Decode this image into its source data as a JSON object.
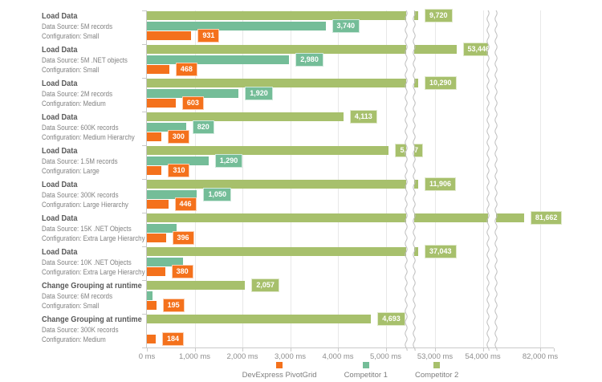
{
  "chart_data": {
    "type": "bar",
    "orientation": "horizontal",
    "title": "",
    "unit": "ms",
    "grid": true,
    "legend_position": "bottom-center",
    "series": [
      {
        "name": "DevExpress PivotGrid",
        "color": "#F4711C"
      },
      {
        "name": "Competitor 1",
        "color": "#74BD98"
      },
      {
        "name": "Competitor 2",
        "color": "#A7C06C"
      }
    ],
    "groups": [
      {
        "title": "Load Data",
        "data_source": "Data Source: 5M records",
        "configuration": "Configuration: Small",
        "bars": [
          {
            "series": "DevExpress PivotGrid",
            "value": 931,
            "label": "931"
          },
          {
            "series": "Competitor 1",
            "value": 3740,
            "label": "3,740"
          },
          {
            "series": "Competitor 2",
            "value": 9720,
            "label": "9,720"
          }
        ]
      },
      {
        "title": "Load Data",
        "data_source": "Data Source: 5M .NET objects",
        "configuration": "Configuration: Small",
        "bars": [
          {
            "series": "DevExpress PivotGrid",
            "value": 468,
            "label": "468"
          },
          {
            "series": "Competitor 1",
            "value": 2980,
            "label": "2,980"
          },
          {
            "series": "Competitor 2",
            "value": 53446,
            "label": "53,446"
          }
        ]
      },
      {
        "title": "Load Data",
        "data_source": "Data Source: 2M records",
        "configuration": "Configuration: Medium",
        "bars": [
          {
            "series": "DevExpress PivotGrid",
            "value": 603,
            "label": "603"
          },
          {
            "series": "Competitor 1",
            "value": 1920,
            "label": "1,920"
          },
          {
            "series": "Competitor 2",
            "value": 10290,
            "label": "10,290"
          }
        ]
      },
      {
        "title": "Load Data",
        "data_source": "Data Source: 600K records",
        "configuration": "Configuration: Medium Hierarchy",
        "bars": [
          {
            "series": "DevExpress PivotGrid",
            "value": 300,
            "label": "300"
          },
          {
            "series": "Competitor 1",
            "value": 820,
            "label": "820"
          },
          {
            "series": "Competitor 2",
            "value": 4113,
            "label": "4,113"
          }
        ]
      },
      {
        "title": "Load Data",
        "data_source": "Data Source: 1.5M records",
        "configuration": "Configuration: Large",
        "bars": [
          {
            "series": "DevExpress PivotGrid",
            "value": 310,
            "label": "310"
          },
          {
            "series": "Competitor 1",
            "value": 1290,
            "label": "1,290"
          },
          {
            "series": "Competitor 2",
            "value": 5067,
            "label": "5,067"
          }
        ]
      },
      {
        "title": "Load Data",
        "data_source": "Data Source: 300K records",
        "configuration": "Configuration: Large Hierarchy",
        "bars": [
          {
            "series": "DevExpress PivotGrid",
            "value": 446,
            "label": "446"
          },
          {
            "series": "Competitor 1",
            "value": 1050,
            "label": "1,050"
          },
          {
            "series": "Competitor 2",
            "value": 11906,
            "label": "11,906"
          }
        ]
      },
      {
        "title": "Load Data",
        "data_source": "Data Source: 15K .NET Objects",
        "configuration": "Configuration: Extra Large Hierarchy",
        "bars": [
          {
            "series": "DevExpress PivotGrid",
            "value": 396,
            "label": "396"
          },
          {
            "series": "Competitor 1",
            "value": 620,
            "label": ""
          },
          {
            "series": "Competitor 2",
            "value": 81662,
            "label": "81,662"
          }
        ]
      },
      {
        "title": "Load Data",
        "data_source": "Data Source: 10K .NET Objects",
        "configuration": "Configuration: Extra Large Hierarchy",
        "bars": [
          {
            "series": "DevExpress PivotGrid",
            "value": 380,
            "label": "380"
          },
          {
            "series": "Competitor 1",
            "value": 760,
            "label": ""
          },
          {
            "series": "Competitor 2",
            "value": 37043,
            "label": "37,043"
          }
        ]
      },
      {
        "title": "Change Grouping at runtime",
        "data_source": "Data Source: 6M records",
        "configuration": "Configuration: Small",
        "bars": [
          {
            "series": "DevExpress PivotGrid",
            "value": 195,
            "label": "195"
          },
          {
            "series": "Competitor 1",
            "value": 120,
            "label": ""
          },
          {
            "series": "Competitor 2",
            "value": 2057,
            "label": "2,057"
          }
        ]
      },
      {
        "title": "Change Grouping at runtime",
        "data_source": "Data Source: 300K records",
        "configuration": "Configuration: Medium",
        "bars": [
          {
            "series": "DevExpress PivotGrid",
            "value": 184,
            "label": "184"
          },
          {
            "series": "Competitor 1",
            "value": null,
            "label": ""
          },
          {
            "series": "Competitor 2",
            "value": 4693,
            "label": "4,693"
          }
        ]
      }
    ],
    "x_axis": {
      "ticks": [
        {
          "label": "0 ms",
          "value": 0
        },
        {
          "label": "1,000 ms",
          "value": 1000
        },
        {
          "label": "2,000 ms",
          "value": 2000
        },
        {
          "label": "3,000 ms",
          "value": 3000
        },
        {
          "label": "4,000 ms",
          "value": 4000
        },
        {
          "label": "5,000 ms",
          "value": 5000
        },
        {
          "label": "53,000 ms",
          "value": 53000
        },
        {
          "label": "54,000 ms",
          "value": 54000
        },
        {
          "label": "82,000 ms",
          "value": 82000
        }
      ],
      "scale_breaks": [
        {
          "between": "5,000 ms and 53,000 ms"
        },
        {
          "between": "54,000 ms and 82,000 ms"
        }
      ]
    },
    "colors": {
      "gridline": "#e8e8e8",
      "axis": "#c9c9c9",
      "tick_text": "#8d8d8d",
      "legend_text": "#7d7d7d",
      "category_title": "#595959",
      "category_sub": "#818181"
    }
  }
}
